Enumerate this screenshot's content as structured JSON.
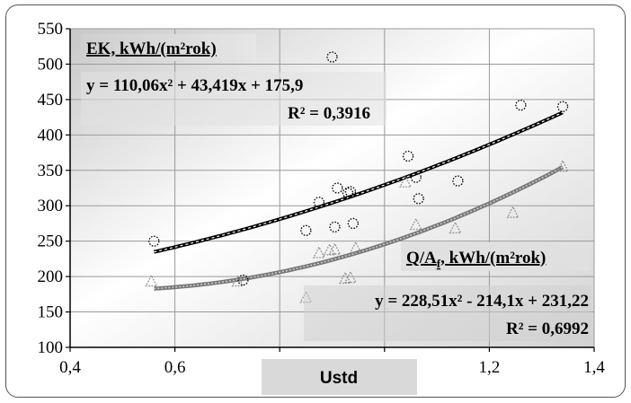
{
  "chart_data": {
    "type": "scatter",
    "xlabel": "Ustd",
    "xlim": [
      0.4,
      1.4
    ],
    "ylim": [
      100,
      550
    ],
    "x_ticks": [
      "0,4",
      "0,6",
      "0,8",
      "1",
      "1,2",
      "1,4"
    ],
    "y_ticks": [
      "100",
      "150",
      "200",
      "250",
      "300",
      "350",
      "400",
      "450",
      "500",
      "550"
    ],
    "grid": true,
    "series": [
      {
        "name": "EK, kWh/(m²rok)",
        "marker": "circle",
        "color": "#000000",
        "points": [
          [
            0.56,
            250
          ],
          [
            0.73,
            195
          ],
          [
            0.85,
            265
          ],
          [
            0.875,
            305
          ],
          [
            0.9,
            510
          ],
          [
            0.905,
            270
          ],
          [
            0.91,
            325
          ],
          [
            0.93,
            318
          ],
          [
            0.935,
            320
          ],
          [
            0.94,
            275
          ],
          [
            1.045,
            370
          ],
          [
            1.06,
            340
          ],
          [
            1.065,
            310
          ],
          [
            1.14,
            335
          ],
          [
            1.26,
            442
          ],
          [
            1.34,
            440
          ]
        ],
        "trendline": {
          "a": 110.06,
          "b": 43.419,
          "c": 175.9,
          "x_from": 0.56,
          "x_to": 1.34,
          "style": "dashed-black"
        },
        "equation": "y = 110,06x² + 43,419x + 175,9",
        "r2": "R² = 0,3916"
      },
      {
        "name": "Q/Af, kWh/(m²rok)",
        "marker": "triangle",
        "color": "#888888",
        "points": [
          [
            0.555,
            193
          ],
          [
            0.72,
            193
          ],
          [
            0.85,
            170
          ],
          [
            0.875,
            233
          ],
          [
            0.895,
            237
          ],
          [
            0.905,
            238
          ],
          [
            0.925,
            197
          ],
          [
            0.935,
            198
          ],
          [
            0.945,
            240
          ],
          [
            1.04,
            333
          ],
          [
            1.06,
            273
          ],
          [
            1.135,
            268
          ],
          [
            1.245,
            290
          ],
          [
            1.34,
            355
          ]
        ],
        "trendline": {
          "a": 228.51,
          "b": -214.1,
          "c": 231.22,
          "x_from": 0.56,
          "x_to": 1.34,
          "style": "grey-dotted"
        },
        "equation": "y = 228,51x² - 214,1x + 231,22",
        "r2": "R² = 0,6992"
      }
    ],
    "labels": {
      "ek_title": "EK, kWh/(m²rok)",
      "q_title_main": "Q/A",
      "q_title_sub": "f",
      "q_title_rest": ", kWh/(m²rok)"
    }
  }
}
